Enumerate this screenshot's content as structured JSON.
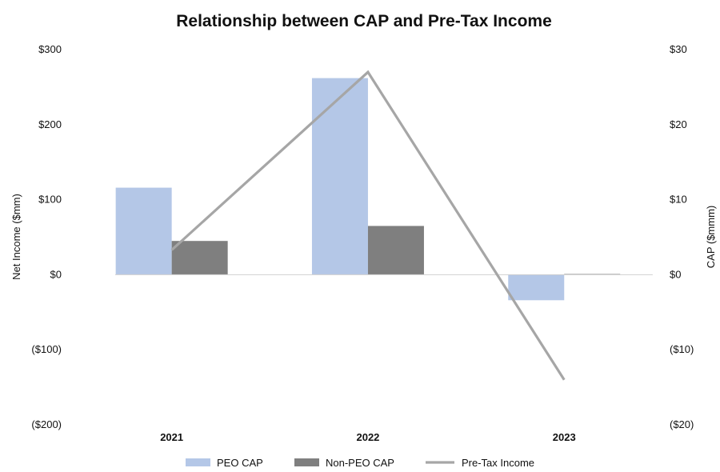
{
  "chart_data": {
    "type": "bar",
    "title": "Relationship between CAP and Pre-Tax Income",
    "categories": [
      "2021",
      "2022",
      "2023"
    ],
    "y_left": {
      "label": "Net Income ($mm)",
      "ylim": [
        -200,
        300
      ],
      "ticks": [
        300,
        200,
        100,
        0,
        -100,
        -200
      ],
      "tick_labels": [
        "$300",
        "$200",
        "$100",
        "$0",
        "($100)",
        "($200)"
      ]
    },
    "y_right": {
      "label": "CAP ($mmm)",
      "ylim": [
        -20,
        30
      ],
      "ticks": [
        30,
        20,
        10,
        0,
        -10,
        -20
      ],
      "tick_labels": [
        "$30",
        "$20",
        "$10",
        "$0",
        "($10)",
        "($20)"
      ]
    },
    "series": [
      {
        "name": "PEO CAP",
        "kind": "bar",
        "axis": "right",
        "color": "#b4c7e7",
        "values": [
          11.6,
          26.2,
          -3.4
        ]
      },
      {
        "name": "Non-PEO CAP",
        "kind": "bar",
        "axis": "right",
        "color": "#7f7f7f",
        "values": [
          4.5,
          6.5,
          0.1
        ]
      },
      {
        "name": "Pre-Tax Income",
        "kind": "line",
        "axis": "left",
        "color": "#a6a6a6",
        "values": [
          33,
          270,
          -140
        ]
      }
    ],
    "legend_position": "bottom",
    "grid": false
  }
}
